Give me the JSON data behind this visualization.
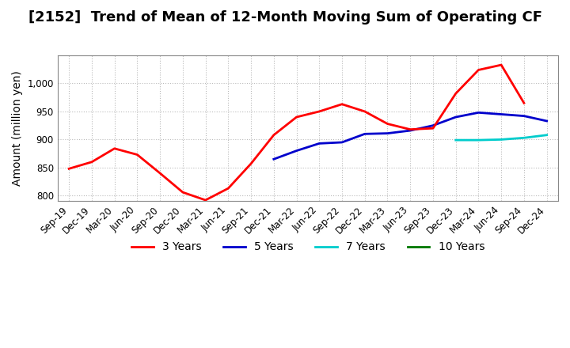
{
  "title": "[2152]  Trend of Mean of 12-Month Moving Sum of Operating CF",
  "ylabel": "Amount (million yen)",
  "ylim": [
    790,
    1050
  ],
  "yticks": [
    800,
    850,
    900,
    950,
    1000
  ],
  "background_color": "#ffffff",
  "plot_bg_color": "#ffffff",
  "grid_color": "#aaaaaa",
  "x_labels": [
    "Sep-19",
    "Dec-19",
    "Mar-20",
    "Jun-20",
    "Sep-20",
    "Dec-20",
    "Mar-21",
    "Jun-21",
    "Sep-21",
    "Dec-21",
    "Mar-22",
    "Jun-22",
    "Sep-22",
    "Dec-22",
    "Mar-23",
    "Jun-23",
    "Sep-23",
    "Dec-23",
    "Mar-24",
    "Jun-24",
    "Sep-24",
    "Dec-24"
  ],
  "series_3y": {
    "color": "#ff0000",
    "label": "3 Years",
    "x": [
      0,
      1,
      2,
      3,
      4,
      5,
      6,
      7,
      8,
      9,
      10,
      11,
      12,
      13,
      14,
      15,
      16,
      17,
      18,
      19,
      20
    ],
    "y": [
      848,
      860,
      884,
      873,
      840,
      806,
      792,
      813,
      857,
      908,
      940,
      950,
      963,
      950,
      928,
      918,
      920,
      982,
      1024,
      1033,
      965
    ]
  },
  "series_5y": {
    "color": "#0000cc",
    "label": "5 Years",
    "x": [
      9,
      10,
      11,
      12,
      13,
      14,
      15,
      16,
      17,
      18,
      19,
      20,
      21
    ],
    "y": [
      865,
      880,
      893,
      895,
      910,
      911,
      916,
      925,
      940,
      948,
      945,
      942,
      933
    ]
  },
  "series_7y": {
    "color": "#00cccc",
    "label": "7 Years",
    "x": [
      17,
      18,
      19,
      20,
      21
    ],
    "y": [
      899,
      899,
      900,
      903,
      908
    ]
  },
  "series_10y": {
    "color": "#007700",
    "label": "10 Years",
    "x": [],
    "y": []
  },
  "title_fontsize": 13,
  "label_fontsize": 10,
  "tick_fontsize": 8.5
}
